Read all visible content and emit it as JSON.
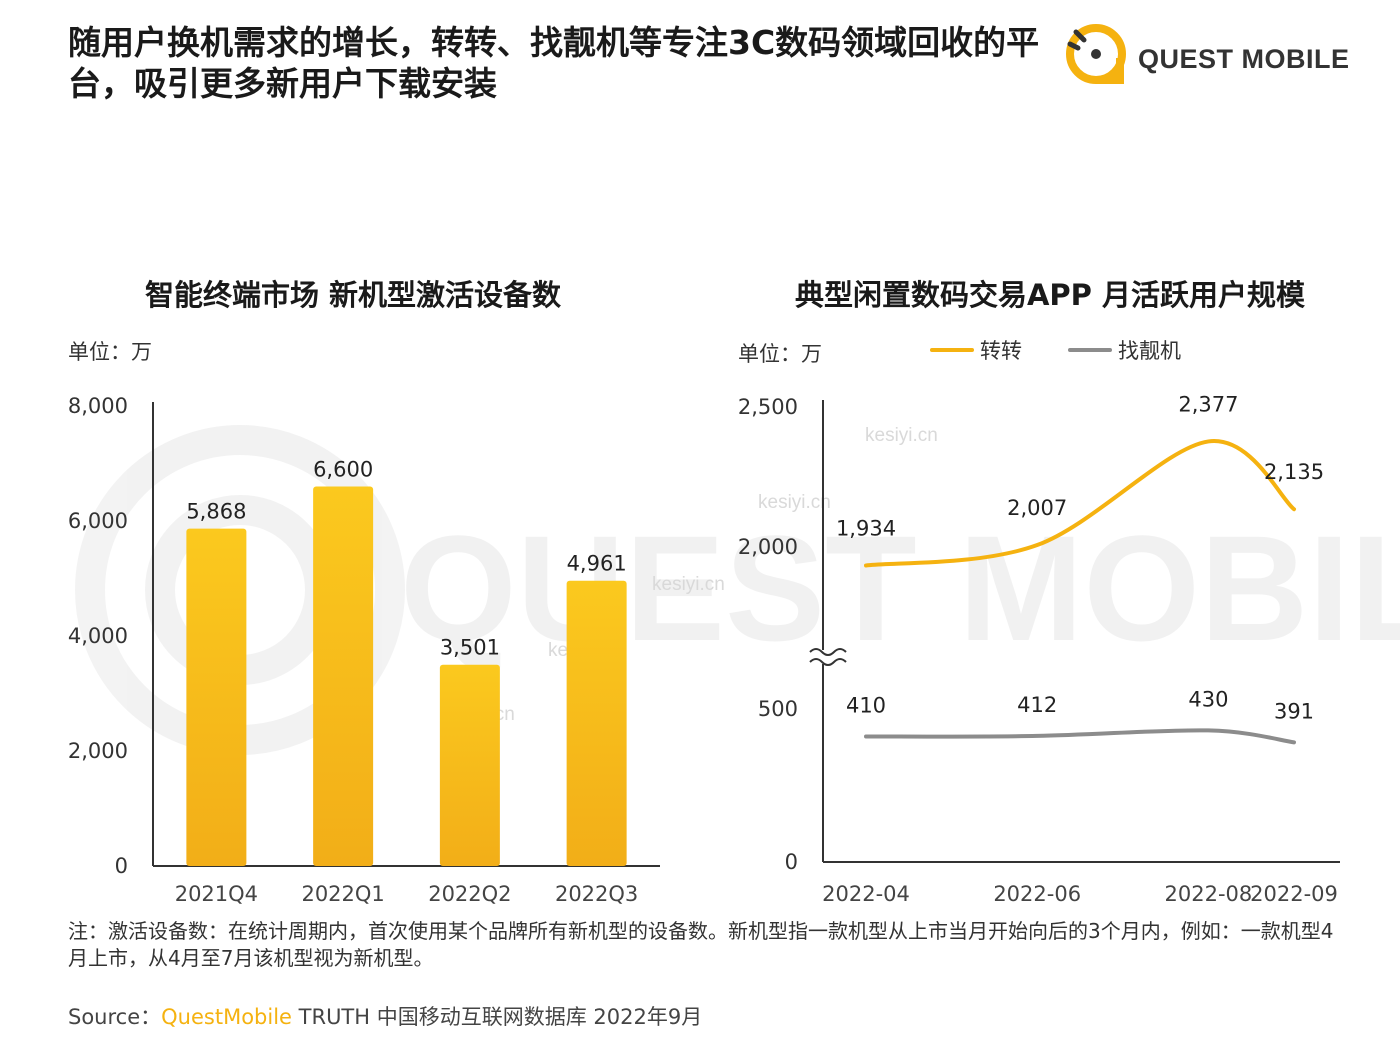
{
  "headline": "随用户换机需求的增长，转转、找靓机等专注3C数码领域回收的平台，吸引更多新用户下载安装",
  "logo_text": "QUEST MOBILE",
  "watermark_text": "kesiyi.cn",
  "colors": {
    "accent": "#F5B210",
    "bar_top": "#FBC91E",
    "bar_bottom": "#F2AE18",
    "gray_line": "#8C8C8C"
  },
  "left_chart": {
    "title": "智能终端市场 新机型激活设备数",
    "unit": "单位：万"
  },
  "right_chart": {
    "title": "典型闲置数码交易APP 月活跃用户规模",
    "unit": "单位：万"
  },
  "chart_data": [
    {
      "type": "bar",
      "title": "智能终端市场 新机型激活设备数",
      "unit": "万",
      "categories": [
        "2021Q4",
        "2022Q1",
        "2022Q2",
        "2022Q3"
      ],
      "values": [
        5868,
        6600,
        3501,
        4961
      ],
      "value_labels": [
        "5,868",
        "6,600",
        "3,501",
        "4,961"
      ],
      "ylim": [
        0,
        8000
      ],
      "yticks": [
        "0",
        "2,000",
        "4,000",
        "6,000",
        "8,000"
      ],
      "grid": false
    },
    {
      "type": "line",
      "title": "典型闲置数码交易APP 月活跃用户规模",
      "unit": "万",
      "x_labels": [
        "2022-04",
        "2022-06",
        "2022-08",
        "2022-09"
      ],
      "axis_break": true,
      "yticks": [
        "0",
        "500",
        "2,000",
        "2,500"
      ],
      "legend_position": "top",
      "series": [
        {
          "name": "转转",
          "color": "#F5B210",
          "points": [
            {
              "x": "2022-04",
              "y": 1934,
              "label": "1,934"
            },
            {
              "x": "2022-06",
              "y": 2007,
              "label": "2,007"
            },
            {
              "x": "2022-08",
              "y": 2377,
              "label": "2,377"
            },
            {
              "x": "2022-09",
              "y": 2135,
              "label": "2,135"
            }
          ]
        },
        {
          "name": "找靓机",
          "color": "#8C8C8C",
          "points": [
            {
              "x": "2022-04",
              "y": 410,
              "label": "410"
            },
            {
              "x": "2022-06",
              "y": 412,
              "label": "412"
            },
            {
              "x": "2022-08",
              "y": 430,
              "label": "430"
            },
            {
              "x": "2022-09",
              "y": 391,
              "label": "391"
            }
          ]
        }
      ]
    }
  ],
  "note": "注：激活设备数：在统计周期内，首次使用某个品牌所有新机型的设备数。新机型指一款机型从上市当月开始向后的3个月内，例如：一款机型4月上市，从4月至7月该机型视为新机型。",
  "source": {
    "prefix": "Source：",
    "highlight": "QuestMobile",
    "rest": " TRUTH 中国移动互联网数据库 2022年9月"
  }
}
